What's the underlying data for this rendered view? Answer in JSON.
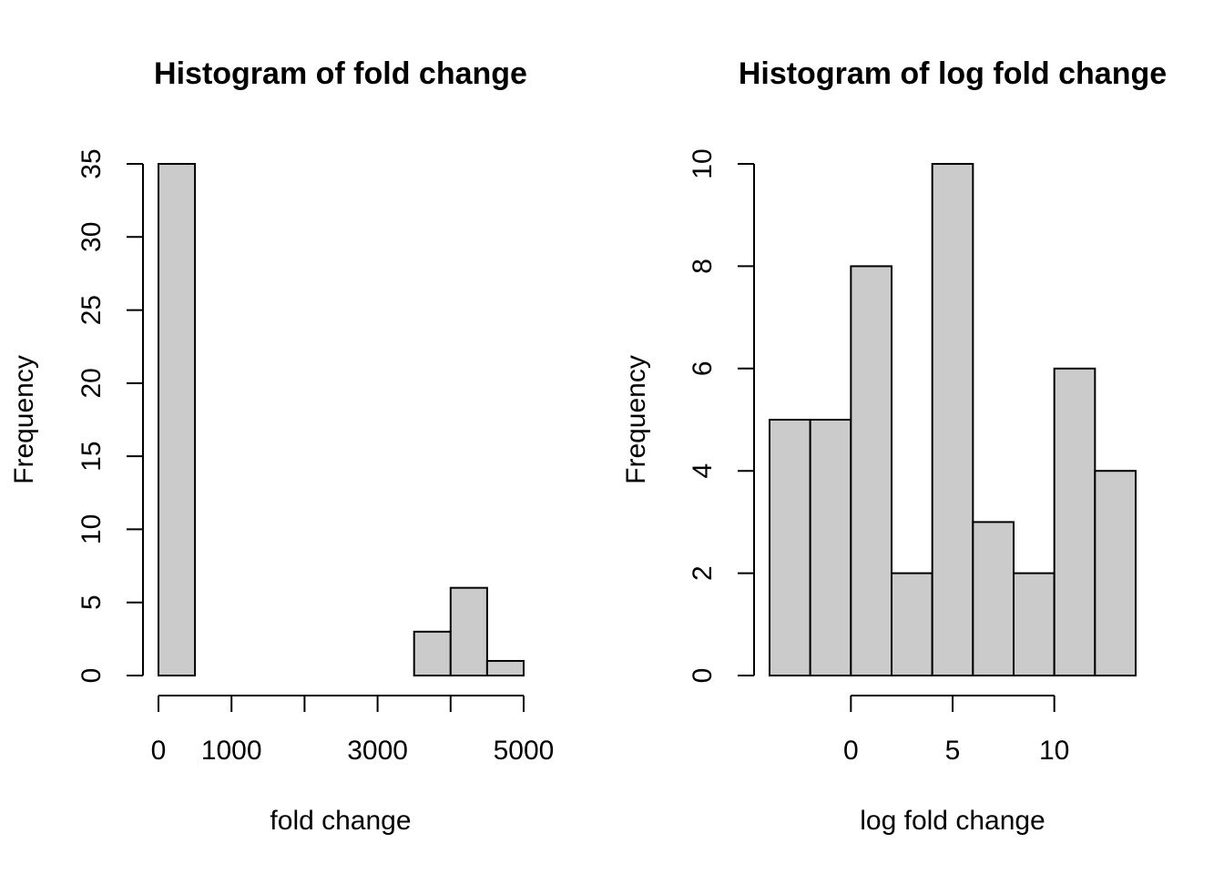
{
  "colors": {
    "bar_fill": "#cbcbcb",
    "bar_stroke": "#000000",
    "background": "#ffffff"
  },
  "chart_data": [
    {
      "type": "bar",
      "title": "Histogram of fold change",
      "xlabel": "fold change",
      "ylabel": "Frequency",
      "bins": [
        {
          "start": 0,
          "end": 500,
          "count": 35
        },
        {
          "start": 500,
          "end": 1000,
          "count": 0
        },
        {
          "start": 1000,
          "end": 1500,
          "count": 0
        },
        {
          "start": 1500,
          "end": 2000,
          "count": 0
        },
        {
          "start": 2000,
          "end": 2500,
          "count": 0
        },
        {
          "start": 2500,
          "end": 3000,
          "count": 0
        },
        {
          "start": 3000,
          "end": 3500,
          "count": 0
        },
        {
          "start": 3500,
          "end": 4000,
          "count": 3
        },
        {
          "start": 4000,
          "end": 4500,
          "count": 6
        },
        {
          "start": 4500,
          "end": 5000,
          "count": 1
        }
      ],
      "xlim": [
        0,
        5000
      ],
      "ylim": [
        0,
        35
      ],
      "x_ticks": [
        0,
        1000,
        2000,
        3000,
        4000,
        5000
      ],
      "x_tick_labels": [
        "0",
        "1000",
        "",
        "3000",
        "",
        "5000"
      ],
      "y_ticks": [
        0,
        5,
        10,
        15,
        20,
        25,
        30,
        35
      ],
      "y_tick_labels": [
        "0",
        "5",
        "10",
        "15",
        "20",
        "25",
        "30",
        "35"
      ],
      "grid": false,
      "legend": "none"
    },
    {
      "type": "bar",
      "title": "Histogram of log fold change",
      "xlabel": "log fold change",
      "ylabel": "Frequency",
      "bins": [
        {
          "start": -4,
          "end": -2,
          "count": 5
        },
        {
          "start": -2,
          "end": 0,
          "count": 5
        },
        {
          "start": 0,
          "end": 2,
          "count": 8
        },
        {
          "start": 2,
          "end": 4,
          "count": 2
        },
        {
          "start": 4,
          "end": 6,
          "count": 10
        },
        {
          "start": 6,
          "end": 8,
          "count": 3
        },
        {
          "start": 8,
          "end": 10,
          "count": 2
        },
        {
          "start": 10,
          "end": 12,
          "count": 6
        },
        {
          "start": 12,
          "end": 14,
          "count": 4
        }
      ],
      "xlim": [
        -4,
        14
      ],
      "ylim": [
        0,
        10
      ],
      "x_ticks": [
        0,
        5,
        10
      ],
      "x_tick_labels": [
        "0",
        "5",
        "10"
      ],
      "y_ticks": [
        0,
        2,
        4,
        6,
        8,
        10
      ],
      "y_tick_labels": [
        "0",
        "2",
        "4",
        "6",
        "8",
        "10"
      ],
      "grid": false,
      "legend": "none"
    }
  ]
}
